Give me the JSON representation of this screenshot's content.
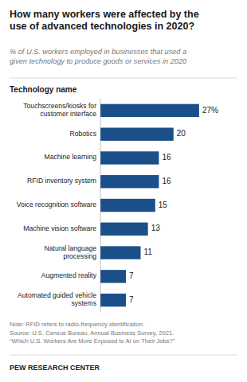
{
  "chart_data": {
    "type": "bar",
    "orientation": "horizontal",
    "title": "How many workers were affected by the\nuse of advanced technologies in 2020?",
    "subtitle": "% of U.S. workers employed in businesses that used a\ngiven technology to produce goods or services in 2020",
    "y_label": "Technology name",
    "categories": [
      "Touchscreens/kiosks for\ncustomer interface",
      "Robotics",
      "Machine learning",
      "RFID inventory system",
      "Voice recognition software",
      "Machine vision software",
      "Natural language\nprocessing",
      "Augmented reality",
      "Automated guided vehicle\nsystems"
    ],
    "values": [
      27,
      20,
      16,
      16,
      15,
      13,
      11,
      7,
      7
    ],
    "value_labels": [
      "27%",
      "20",
      "16",
      "16",
      "15",
      "13",
      "11",
      "7",
      "7"
    ],
    "data_labels": true,
    "color": "#1B4F8A",
    "xlim": [
      0,
      34
    ],
    "tick_labels": "y",
    "grid": false,
    "note": "Note: RFID refers to radio-frequency identification.\nSource: U.S. Census Bureau, Annual Business Survey, 2021.\n“Which U.S. Workers Are More Exposed to AI on Their Jobs?”",
    "footer": "PEW RESEARCH CENTER"
  }
}
